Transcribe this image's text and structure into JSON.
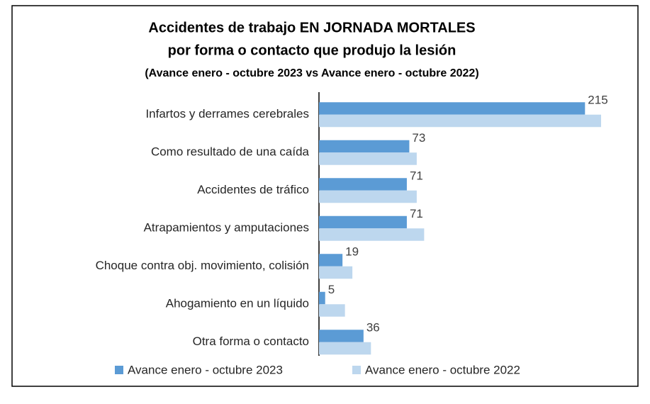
{
  "chart_data": {
    "type": "hbar",
    "title": "Accidentes de trabajo EN JORNADA MORTALES",
    "subtitle": "por forma o contacto que produjo la lesión",
    "subtitle2": "(Avance enero - octubre 2023 vs Avance enero - octubre 2022)",
    "categories": [
      "Infartos y derrames cerebrales",
      "Como resultado de una caída",
      "Accidentes de tráfico",
      "Atrapamientos y amputaciones",
      "Choque contra obj. movimiento, colisión",
      "Ahogamiento en un líquido",
      "Otra forma o contacto"
    ],
    "series": [
      {
        "name": "Avance enero - octubre 2023",
        "color": "#5b9bd5",
        "values": [
          215,
          73,
          71,
          71,
          19,
          5,
          36
        ],
        "labels": true
      },
      {
        "name": "Avance enero - octubre 2022",
        "color": "#bdd7ee",
        "values": [
          228,
          79,
          79,
          85,
          27,
          21,
          42
        ],
        "labels": false
      }
    ],
    "legend": "bottom"
  }
}
